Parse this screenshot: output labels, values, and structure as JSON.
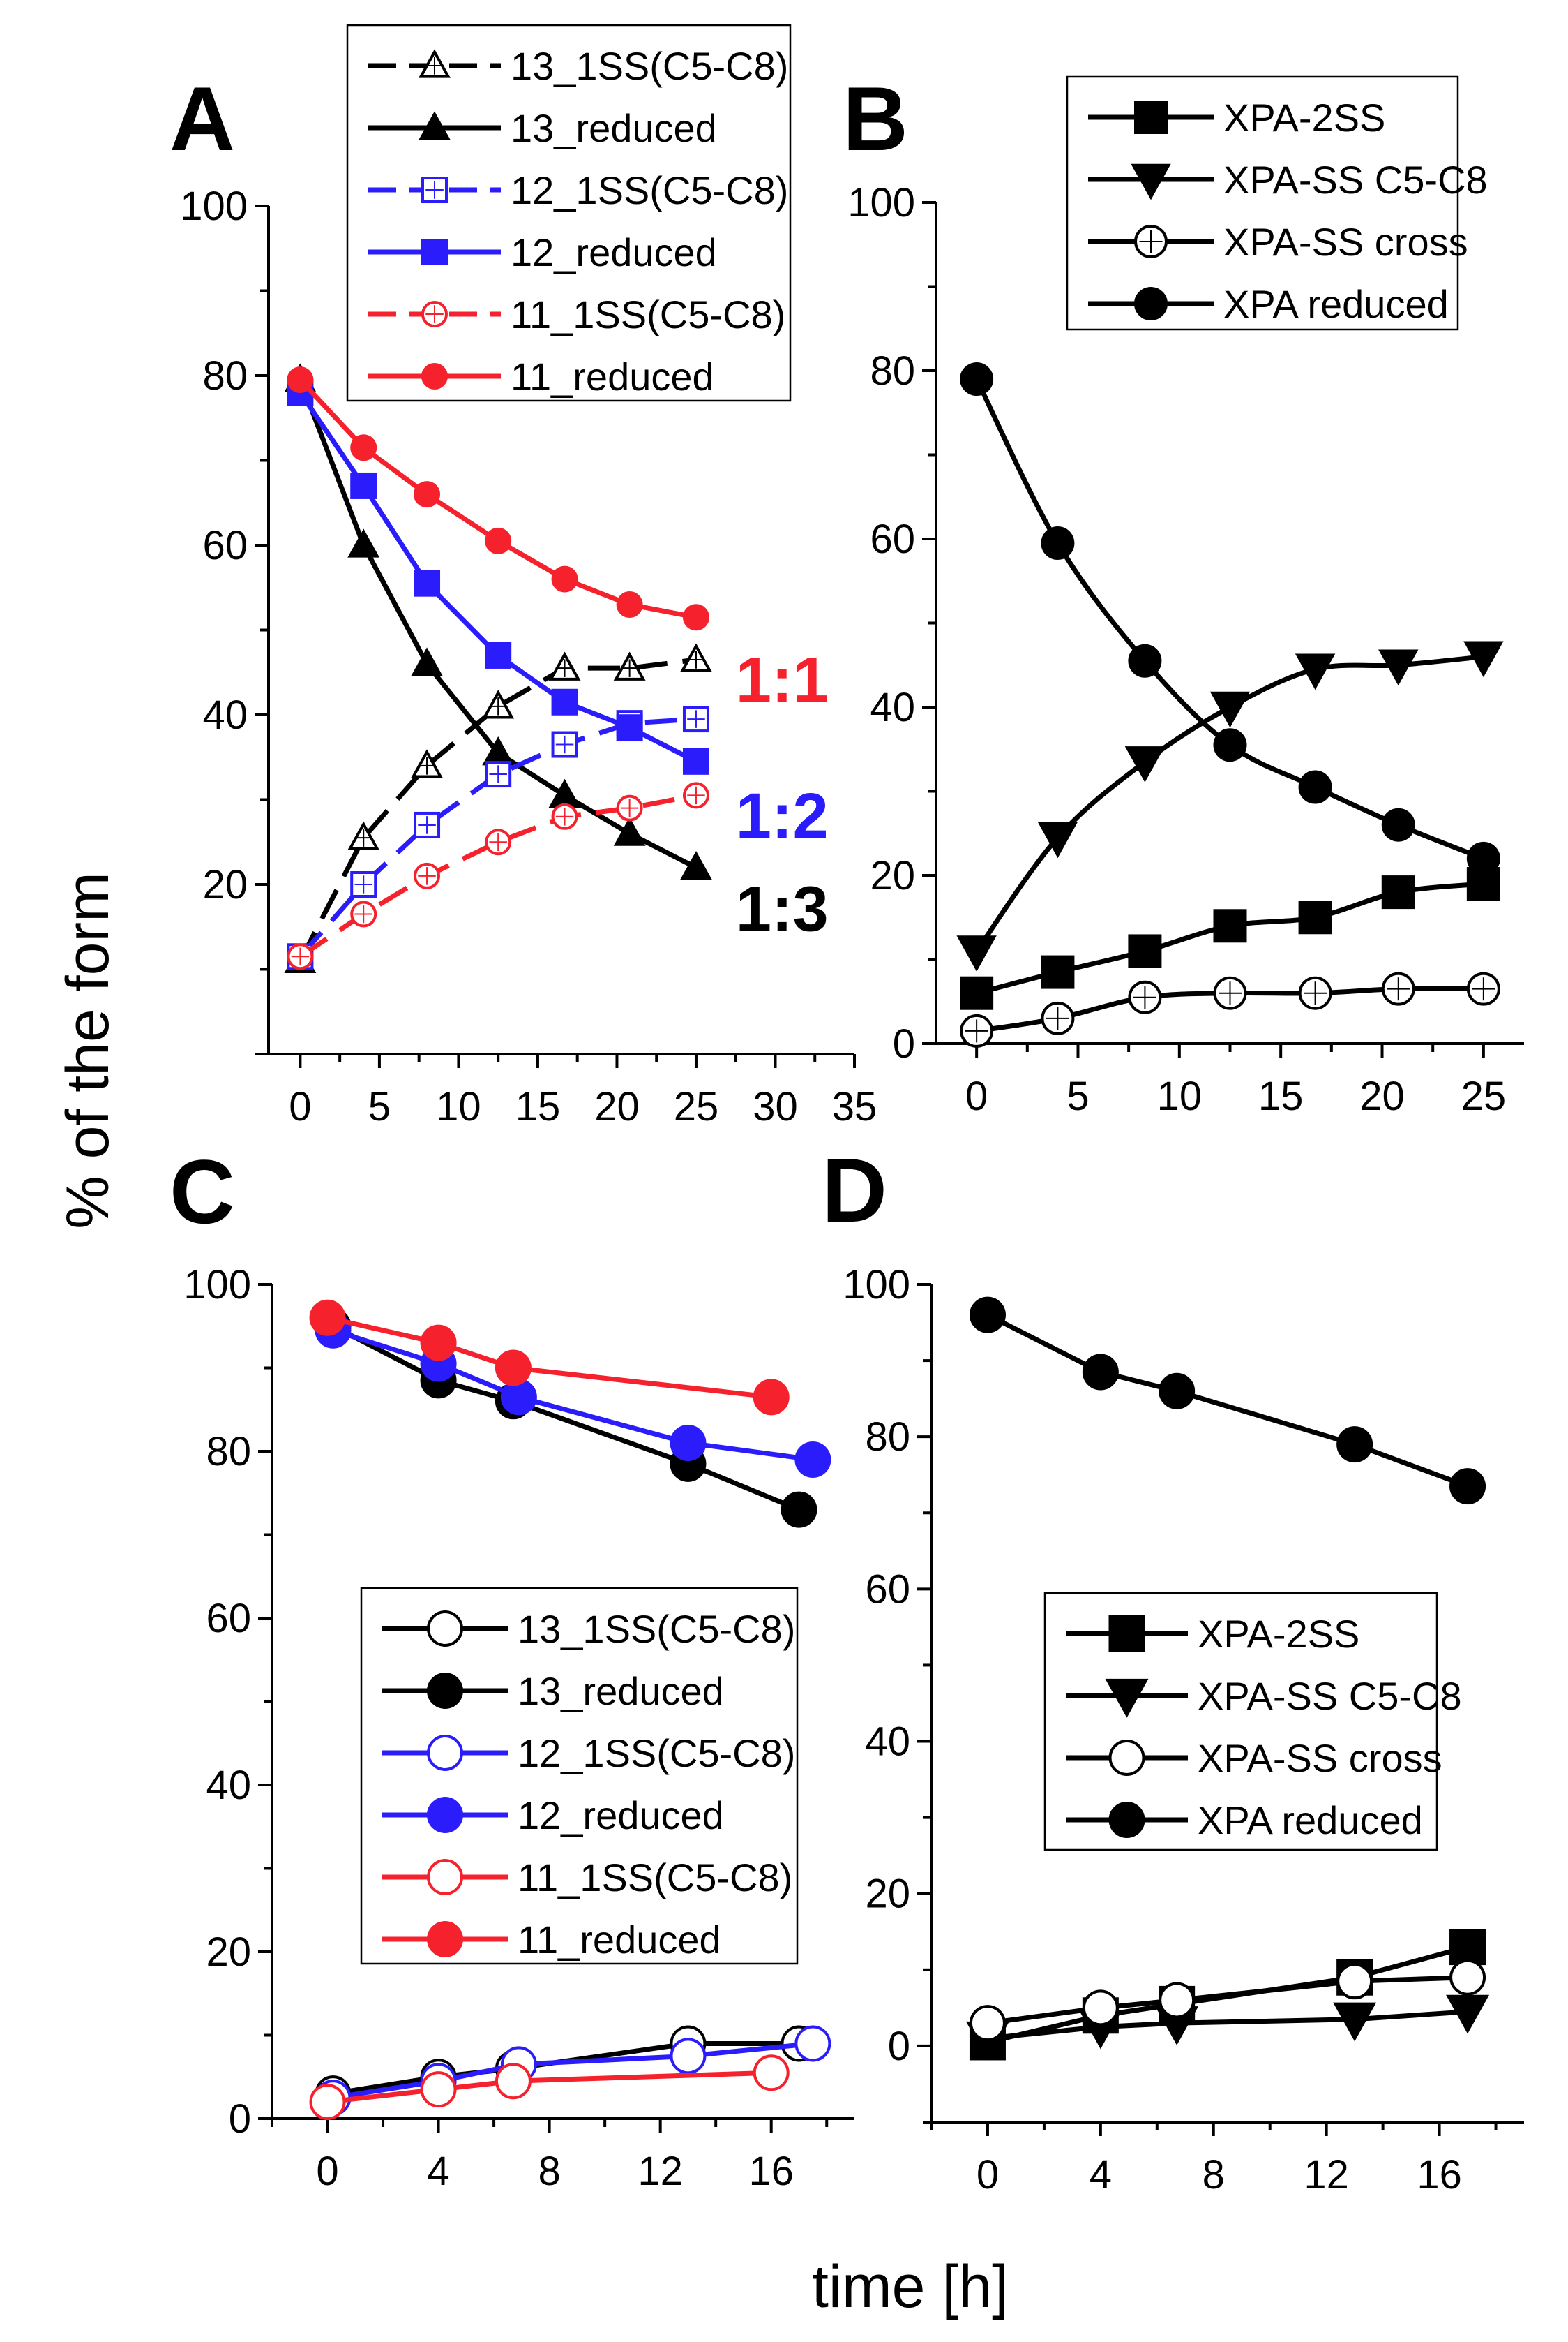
{
  "figure": {
    "ylabel": "% of the form",
    "xlabel": "time [h]",
    "colors": {
      "black": "#000000",
      "blue": "#2b1dfb",
      "red": "#f5222d"
    }
  },
  "chart_data": [
    {
      "panel": "A",
      "type": "line",
      "xlim": [
        -2,
        35
      ],
      "ylim": [
        0,
        100
      ],
      "xticks": [
        0,
        5,
        10,
        15,
        20,
        25,
        30,
        35
      ],
      "yticks": [
        20,
        40,
        60,
        80,
        100
      ],
      "legend_position": "top",
      "series": [
        {
          "name": "13_1SS(C5-C8)",
          "color": "black",
          "marker": "triangle-up",
          "filled": false,
          "dashed": true,
          "x": [
            0,
            4,
            8,
            12.5,
            16.7,
            20.8,
            25
          ],
          "y": [
            11,
            25.5,
            34,
            41,
            45.5,
            45.5,
            46.5
          ]
        },
        {
          "name": "13_reduced",
          "color": "black",
          "marker": "triangle-up",
          "filled": true,
          "dashed": false,
          "x": [
            0,
            4,
            8,
            12.5,
            16.7,
            20.8,
            25
          ],
          "y": [
            79.5,
            60,
            46,
            35.5,
            30.5,
            26,
            22
          ]
        },
        {
          "name": "12_1SS(C5-C8)",
          "color": "blue",
          "marker": "square",
          "filled": false,
          "dashed": true,
          "x": [
            0,
            4,
            8,
            12.5,
            16.7,
            20.8,
            25
          ],
          "y": [
            11.5,
            20,
            27,
            33,
            36.5,
            39,
            39.5
          ]
        },
        {
          "name": "12_reduced",
          "color": "blue",
          "marker": "square",
          "filled": true,
          "dashed": false,
          "x": [
            0,
            4,
            8,
            12.5,
            16.7,
            20.8,
            25
          ],
          "y": [
            78,
            67,
            55.5,
            47,
            41.5,
            38.5,
            34.5
          ]
        },
        {
          "name": "11_1SS(C5-C8)",
          "color": "red",
          "marker": "circle",
          "filled": false,
          "dashed": true,
          "x": [
            0,
            4,
            8,
            12.5,
            16.7,
            20.8,
            25
          ],
          "y": [
            11.5,
            16.5,
            21,
            25,
            28,
            29,
            30.5
          ]
        },
        {
          "name": "11_reduced",
          "color": "red",
          "marker": "circle",
          "filled": true,
          "dashed": false,
          "x": [
            0,
            4,
            8,
            12.5,
            16.7,
            20.8,
            25
          ],
          "y": [
            79.5,
            71.5,
            66,
            60.5,
            56,
            53,
            51.5
          ]
        }
      ],
      "annotations": [
        {
          "text": "1:1",
          "color": "red",
          "x": 27.5,
          "y": 44
        },
        {
          "text": "1:2",
          "color": "blue",
          "x": 27.5,
          "y": 28
        },
        {
          "text": "1:3",
          "color": "black",
          "x": 27.5,
          "y": 17
        }
      ]
    },
    {
      "panel": "B",
      "type": "line",
      "xlim": [
        -2,
        27
      ],
      "ylim": [
        0,
        100
      ],
      "xticks": [
        0,
        5,
        10,
        15,
        20,
        25
      ],
      "yticks": [
        0,
        20,
        40,
        60,
        80,
        100
      ],
      "legend_position": "top-right",
      "series": [
        {
          "name": "XPA-2SS",
          "color": "black",
          "marker": "square",
          "filled": true,
          "dashed": false,
          "x": [
            0,
            4,
            8.3,
            12.5,
            16.7,
            20.8,
            25
          ],
          "y": [
            6,
            8.5,
            11,
            14,
            15,
            18,
            19
          ]
        },
        {
          "name": "XPA-SS C5-C8",
          "color": "black",
          "marker": "triangle-down",
          "filled": true,
          "dashed": false,
          "x": [
            0,
            4,
            8.3,
            12.5,
            16.7,
            20.8,
            25
          ],
          "y": [
            11,
            24.5,
            33.5,
            40,
            44.5,
            45,
            46
          ]
        },
        {
          "name": "XPA-SS cross",
          "color": "black",
          "marker": "circle",
          "filled": false,
          "dashed": false,
          "x": [
            0,
            4,
            8.3,
            12.5,
            16.7,
            20.8,
            25
          ],
          "y": [
            1.5,
            3,
            5.5,
            6,
            6,
            6.5,
            6.5
          ]
        },
        {
          "name": "XPA reduced",
          "color": "black",
          "marker": "circle",
          "filled": true,
          "dashed": false,
          "x": [
            0,
            4,
            8.3,
            12.5,
            16.7,
            20.8,
            25
          ],
          "y": [
            79,
            59.5,
            45.5,
            35.5,
            30.5,
            26,
            22
          ]
        }
      ]
    },
    {
      "panel": "C",
      "type": "line",
      "xlim": [
        -2,
        19
      ],
      "ylim": [
        0,
        100
      ],
      "xticks": [
        0,
        4,
        8,
        12,
        16
      ],
      "yticks": [
        0,
        20,
        40,
        60,
        80,
        100
      ],
      "legend_position": "center",
      "series": [
        {
          "name": "13_1SS(C5-C8)",
          "color": "black",
          "marker": "circle",
          "filled": false,
          "dashed": false,
          "x": [
            0.2,
            4,
            6.7,
            13,
            17
          ],
          "y": [
            3,
            5,
            6,
            9,
            9
          ]
        },
        {
          "name": "13_reduced",
          "color": "black",
          "marker": "circle",
          "filled": true,
          "dashed": false,
          "x": [
            0.2,
            4,
            6.7,
            13,
            17
          ],
          "y": [
            95,
            88.5,
            86,
            78.5,
            73
          ]
        },
        {
          "name": "12_1SS(C5-C8)",
          "color": "blue",
          "marker": "circle",
          "filled": false,
          "dashed": false,
          "x": [
            0.2,
            4,
            6.9,
            13,
            17.5
          ],
          "y": [
            2.5,
            4.5,
            6.5,
            7.5,
            9
          ]
        },
        {
          "name": "12_reduced",
          "color": "blue",
          "marker": "circle",
          "filled": true,
          "dashed": false,
          "x": [
            0.2,
            4,
            6.9,
            13,
            17.5
          ],
          "y": [
            94.5,
            90.5,
            86.5,
            81,
            79
          ]
        },
        {
          "name": "11_1SS(C5-C8)",
          "color": "red",
          "marker": "circle",
          "filled": false,
          "dashed": false,
          "x": [
            0,
            4,
            6.7,
            16
          ],
          "y": [
            2,
            3.5,
            4.5,
            5.5
          ]
        },
        {
          "name": "11_reduced",
          "color": "red",
          "marker": "circle",
          "filled": true,
          "dashed": false,
          "x": [
            0,
            4,
            6.7,
            16
          ],
          "y": [
            96,
            93,
            90,
            86.5
          ]
        }
      ]
    },
    {
      "panel": "D",
      "type": "line",
      "xlim": [
        -2,
        19
      ],
      "ylim": [
        -10,
        100
      ],
      "xticks": [
        0,
        4,
        8,
        12,
        16
      ],
      "yticks": [
        0,
        20,
        40,
        60,
        80,
        100
      ],
      "legend_position": "center-right",
      "series": [
        {
          "name": "XPA-2SS",
          "color": "black",
          "marker": "square",
          "filled": true,
          "dashed": false,
          "x": [
            0,
            4,
            6.7,
            13,
            17
          ],
          "y": [
            0.5,
            4,
            5.5,
            9,
            13
          ]
        },
        {
          "name": "XPA-SS C5-C8",
          "color": "black",
          "marker": "triangle-down",
          "filled": true,
          "dashed": false,
          "x": [
            0,
            4,
            6.7,
            13,
            17
          ],
          "y": [
            1,
            2.5,
            3,
            3.5,
            4.5
          ]
        },
        {
          "name": "XPA-SS cross",
          "color": "black",
          "marker": "circle",
          "filled": false,
          "dashed": false,
          "x": [
            0,
            4,
            6.7,
            13,
            17
          ],
          "y": [
            3,
            5,
            6,
            8.5,
            9
          ]
        },
        {
          "name": "XPA reduced",
          "color": "black",
          "marker": "circle",
          "filled": true,
          "dashed": false,
          "x": [
            0,
            4,
            6.7,
            13,
            17
          ],
          "y": [
            96,
            88.5,
            86,
            79,
            73.5
          ]
        }
      ]
    }
  ]
}
